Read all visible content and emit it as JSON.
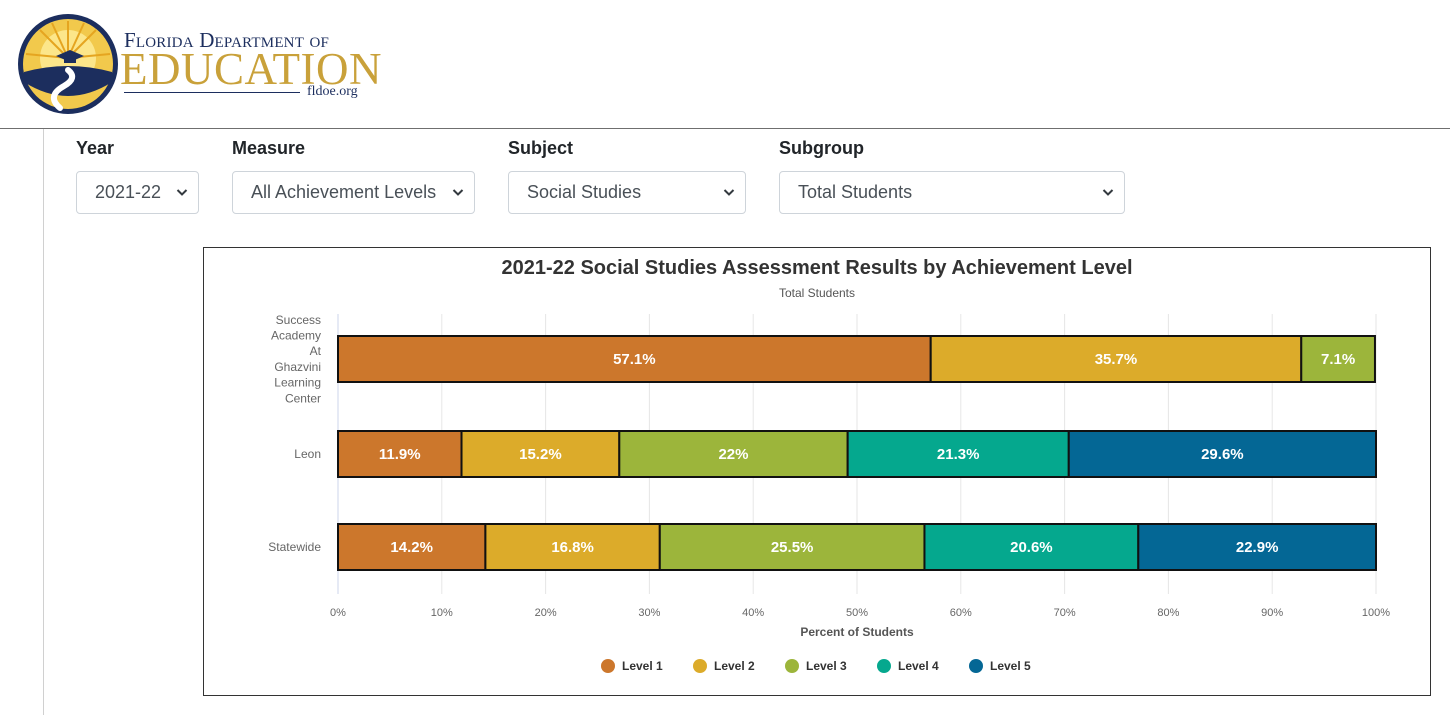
{
  "header": {
    "logo_line1": "Florida Department of",
    "logo_line2": "EDUCATION",
    "logo_url": "fldoe.org"
  },
  "filters": [
    {
      "label": "Year",
      "value": "2021-22"
    },
    {
      "label": "Measure",
      "value": "All Achievement Levels"
    },
    {
      "label": "Subject",
      "value": "Social Studies"
    },
    {
      "label": "Subgroup",
      "value": "Total Students"
    }
  ],
  "colors": {
    "level1": "#cc772c",
    "level2": "#dcab2a",
    "level3": "#9cb53b",
    "level4": "#05a88e",
    "level5": "#046795"
  },
  "chart_data": {
    "type": "bar",
    "orientation": "horizontal",
    "stacked": true,
    "title": "2021-22 Social Studies Assessment Results by Achievement Level",
    "subtitle": "Total Students",
    "xlabel": "Percent of Students",
    "ylabel": "",
    "xlim": [
      0,
      100
    ],
    "x_ticks": [
      "0%",
      "10%",
      "20%",
      "30%",
      "40%",
      "50%",
      "60%",
      "70%",
      "80%",
      "90%",
      "100%"
    ],
    "categories": [
      "Success Academy At Ghazvini Learning Center",
      "Leon",
      "Statewide"
    ],
    "category_label_lines": [
      [
        "Success",
        "Academy",
        "At",
        "Ghazvini",
        "Learning",
        "Center"
      ],
      [
        "Leon"
      ],
      [
        "Statewide"
      ]
    ],
    "series": [
      {
        "name": "Level 1",
        "color": "#cc772c",
        "values": [
          57.1,
          11.9,
          14.2
        ]
      },
      {
        "name": "Level 2",
        "color": "#dcab2a",
        "values": [
          35.7,
          15.2,
          16.8
        ]
      },
      {
        "name": "Level 3",
        "color": "#9cb53b",
        "values": [
          7.1,
          22,
          25.5
        ]
      },
      {
        "name": "Level 4",
        "color": "#05a88e",
        "values": [
          null,
          21.3,
          20.6
        ]
      },
      {
        "name": "Level 5",
        "color": "#046795",
        "values": [
          null,
          29.6,
          22.9
        ]
      }
    ],
    "data_labels": [
      [
        "57.1%",
        "35.7%",
        "7.1%",
        "",
        ""
      ],
      [
        "11.9%",
        "15.2%",
        "22%",
        "21.3%",
        "29.6%"
      ],
      [
        "14.2%",
        "16.8%",
        "25.5%",
        "20.6%",
        "22.9%"
      ]
    ],
    "grid": true,
    "legend": "bottom-center"
  }
}
